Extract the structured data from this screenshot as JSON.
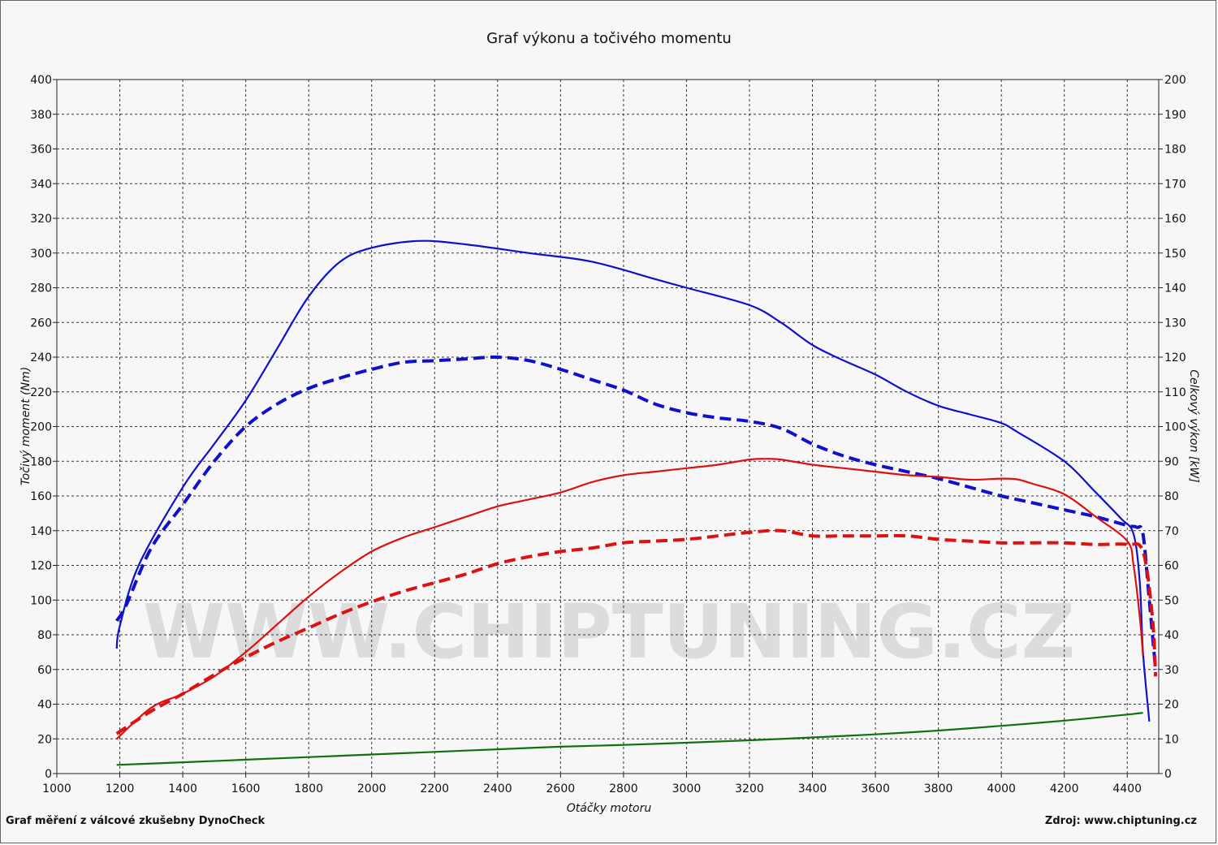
{
  "chart_data": {
    "type": "line",
    "title": "Graf výkonu a točivého momentu",
    "xlabel": "Otáčky motoru",
    "ylabel_left": "Točivý moment (Nm)",
    "ylabel_right": "Celkový výkon [kW]",
    "xlim": [
      1000,
      4500
    ],
    "ylim_left": [
      0,
      400
    ],
    "ylim_right": [
      0,
      200
    ],
    "x_ticks": [
      1000,
      1200,
      1400,
      1600,
      1800,
      2000,
      2200,
      2400,
      2600,
      2800,
      3000,
      3200,
      3400,
      3600,
      3800,
      4000,
      4200,
      4400
    ],
    "y_ticks_left": [
      0,
      20,
      40,
      60,
      80,
      100,
      120,
      140,
      160,
      180,
      200,
      220,
      240,
      260,
      280,
      300,
      320,
      340,
      360,
      380,
      400
    ],
    "y_ticks_right": [
      0,
      10,
      20,
      30,
      40,
      50,
      60,
      70,
      80,
      90,
      100,
      110,
      120,
      130,
      140,
      150,
      160,
      170,
      180,
      190,
      200
    ],
    "grid": true,
    "series": [
      {
        "color": "#1010cc",
        "style": "solid",
        "axis": "left",
        "x": [
          1190,
          1200,
          1260,
          1400,
          1500,
          1600,
          1700,
          1800,
          1900,
          2000,
          2150,
          2300,
          2500,
          2700,
          2900,
          3000,
          3200,
          3300,
          3400,
          3500,
          3600,
          3700,
          3800,
          3900,
          4000,
          4050,
          4200,
          4300,
          4380,
          4420,
          4440,
          4450,
          4470
        ],
        "values": [
          72,
          85,
          120,
          165,
          190,
          215,
          245,
          275,
          295,
          303,
          307,
          305,
          300,
          295,
          285,
          280,
          270,
          260,
          247,
          238,
          230,
          220,
          212,
          207,
          202,
          197,
          180,
          162,
          147,
          138,
          110,
          70,
          30
        ]
      },
      {
        "color": "#1010cc",
        "style": "dashed",
        "axis": "left",
        "x": [
          1190,
          1220,
          1300,
          1400,
          1500,
          1600,
          1700,
          1800,
          1900,
          2000,
          2100,
          2200,
          2300,
          2400,
          2500,
          2600,
          2700,
          2800,
          2900,
          3000,
          3100,
          3200,
          3300,
          3400,
          3500,
          3600,
          3700,
          3800,
          3900,
          4000,
          4100,
          4200,
          4300,
          4400,
          4430,
          4450,
          4470,
          4490
        ],
        "values": [
          88,
          97,
          130,
          155,
          180,
          200,
          213,
          222,
          228,
          233,
          237,
          238,
          239,
          240,
          238,
          233,
          227,
          221,
          213,
          208,
          205,
          203,
          199,
          190,
          183,
          178,
          174,
          170,
          165,
          160,
          156,
          152,
          148,
          143,
          142,
          138,
          100,
          60
        ]
      },
      {
        "color": "#dd1111",
        "style": "solid",
        "axis": "right",
        "x": [
          1190,
          1300,
          1400,
          1500,
          1600,
          1700,
          1800,
          1900,
          2000,
          2100,
          2200,
          2300,
          2400,
          2500,
          2600,
          2700,
          2800,
          2900,
          3000,
          3100,
          3200,
          3250,
          3300,
          3400,
          3500,
          3600,
          3700,
          3800,
          3900,
          4000,
          4050,
          4100,
          4200,
          4300,
          4400,
          4420,
          4440,
          4450
        ],
        "values": [
          10,
          19,
          23,
          28,
          35,
          43,
          51,
          58,
          64,
          68,
          71,
          74,
          77,
          79,
          81,
          84,
          86,
          87,
          88,
          89,
          90.5,
          90.7,
          90.5,
          89,
          88,
          87,
          86,
          85.5,
          84.7,
          85,
          84.8,
          83.5,
          80.5,
          74,
          67,
          60,
          45,
          34
        ]
      },
      {
        "color": "#dd1111",
        "style": "dashed",
        "axis": "right",
        "x": [
          1190,
          1300,
          1400,
          1500,
          1600,
          1700,
          1800,
          1900,
          2000,
          2100,
          2200,
          2300,
          2400,
          2500,
          2600,
          2700,
          2800,
          2900,
          3000,
          3100,
          3200,
          3300,
          3400,
          3500,
          3600,
          3700,
          3800,
          3900,
          4000,
          4100,
          4200,
          4300,
          4400,
          4450,
          4480,
          4490
        ],
        "values": [
          11.5,
          18,
          23,
          28.5,
          33.5,
          38,
          42,
          46,
          49.5,
          52.5,
          55,
          57.5,
          60.5,
          62.5,
          64,
          65,
          66.5,
          67,
          67.5,
          68.5,
          69.5,
          70,
          68.5,
          68.5,
          68.5,
          68.5,
          67.5,
          67,
          66.5,
          66.5,
          66.5,
          66,
          66,
          64,
          45,
          28
        ]
      },
      {
        "color": "#107010",
        "style": "solid",
        "axis": "left",
        "x": [
          1190,
          1400,
          1600,
          1800,
          2000,
          2200,
          2400,
          2600,
          2800,
          3000,
          3200,
          3400,
          3600,
          3800,
          4000,
          4200,
          4400,
          4450
        ],
        "values": [
          5,
          6.5,
          8,
          9.5,
          11,
          12.5,
          14,
          15.5,
          16.5,
          17.8,
          19.2,
          20.8,
          22.6,
          24.8,
          27.5,
          30.5,
          34,
          35
        ]
      }
    ]
  },
  "watermark": "WWW.CHIPTUNING.CZ",
  "footer": {
    "left": "Graf měření z válcové zkušebny DynoCheck",
    "right": "Zdroj: www.chiptuning.cz"
  }
}
